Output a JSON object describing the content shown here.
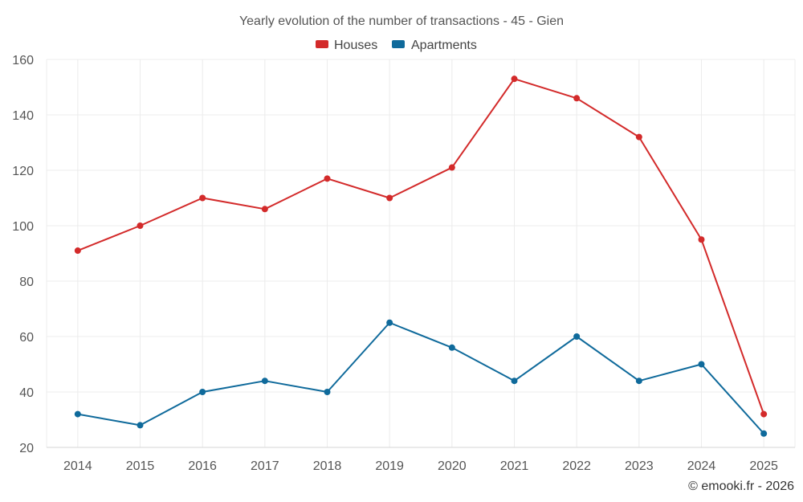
{
  "chart_data": {
    "type": "line",
    "title": "Yearly evolution of the number of transactions - 45 - Gien",
    "categories": [
      "2014",
      "2015",
      "2016",
      "2017",
      "2018",
      "2019",
      "2020",
      "2021",
      "2022",
      "2023",
      "2024",
      "2025"
    ],
    "series": [
      {
        "name": "Houses",
        "color": "#d32a2a",
        "values": [
          91,
          100,
          110,
          106,
          117,
          110,
          121,
          153,
          146,
          132,
          95,
          32
        ]
      },
      {
        "name": "Apartments",
        "color": "#0f6a9b",
        "values": [
          32,
          28,
          40,
          44,
          40,
          65,
          56,
          44,
          60,
          44,
          50,
          25
        ]
      }
    ],
    "ylim": [
      20,
      160
    ],
    "yticks": [
      20,
      40,
      60,
      80,
      100,
      120,
      140,
      160
    ],
    "xlabel": "",
    "ylabel": "",
    "grid": true,
    "legend_position": "top-center"
  },
  "credit": "© emooki.fr - 2026"
}
